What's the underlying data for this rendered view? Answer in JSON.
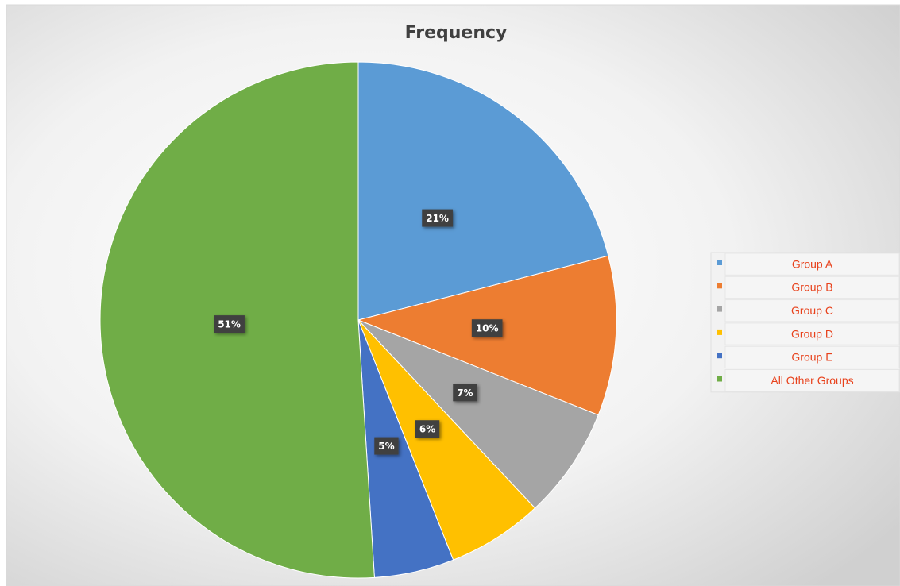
{
  "chart_data": {
    "type": "pie",
    "title": "Frequency",
    "categories": [
      "Group A",
      "Group B",
      "Group C",
      "Group D",
      "Group E",
      "All Other Groups"
    ],
    "values": [
      21,
      10,
      7,
      6,
      5,
      51
    ],
    "value_labels": [
      "21%",
      "10%",
      "7%",
      "6%",
      "5%",
      "51%"
    ],
    "colors": [
      "#5b9bd5",
      "#ed7d31",
      "#a5a5a5",
      "#ffc000",
      "#4472c4",
      "#70ad47"
    ],
    "legend": "right"
  }
}
